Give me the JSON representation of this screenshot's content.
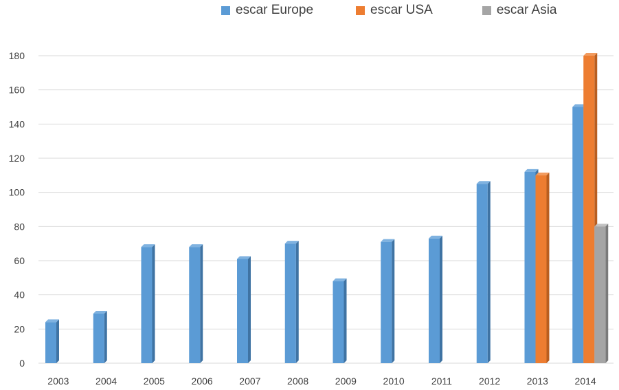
{
  "chart_data": {
    "type": "bar",
    "title": "",
    "xlabel": "",
    "ylabel": "",
    "categories": [
      "2003",
      "2004",
      "2005",
      "2006",
      "2007",
      "2008",
      "2009",
      "2010",
      "2011",
      "2012",
      "2013",
      "2014"
    ],
    "series": [
      {
        "name": "escar Europe",
        "color": "#5B9BD5",
        "values": [
          24,
          29,
          68,
          68,
          61,
          70,
          48,
          71,
          73,
          105,
          112,
          150
        ]
      },
      {
        "name": "escar USA",
        "color": "#ED7D31",
        "values": [
          null,
          null,
          null,
          null,
          null,
          null,
          null,
          null,
          null,
          null,
          110,
          180
        ]
      },
      {
        "name": "escar Asia",
        "color": "#A5A5A5",
        "values": [
          null,
          null,
          null,
          null,
          null,
          null,
          null,
          null,
          null,
          null,
          null,
          80
        ]
      }
    ],
    "ylim": [
      0,
      180
    ],
    "yticks": [
      "0",
      "20",
      "40",
      "60",
      "80",
      "100",
      "120",
      "140",
      "160",
      "180"
    ],
    "grid": true,
    "legend_position": "top"
  }
}
